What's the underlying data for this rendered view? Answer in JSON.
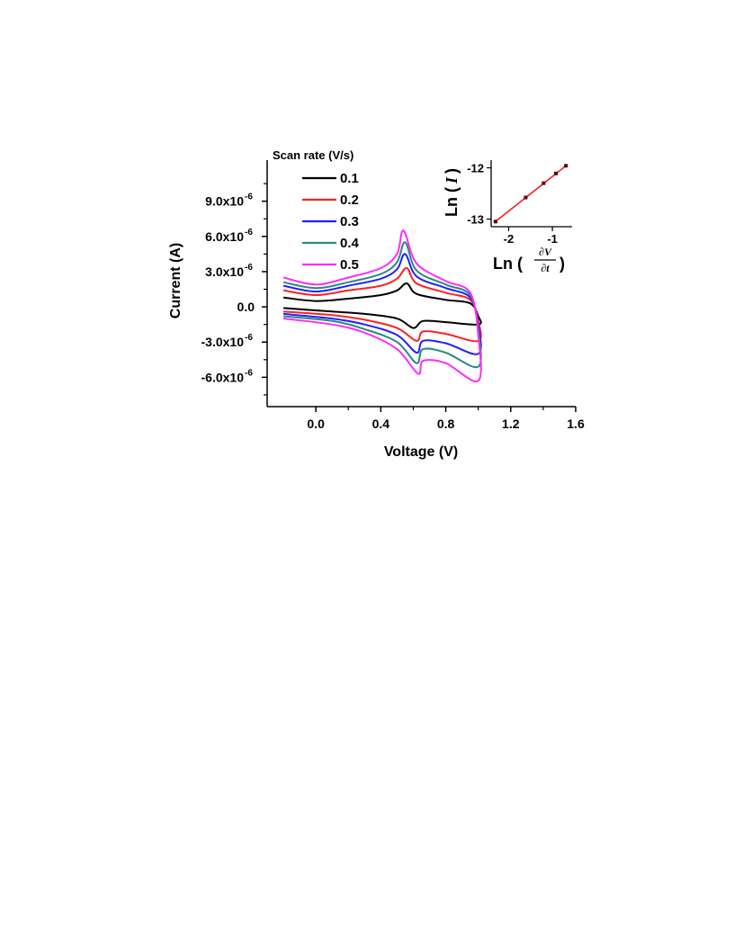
{
  "chart_data": [
    {
      "type": "line",
      "xlabel": "Voltage (V)",
      "ylabel": "Current (A)",
      "xlim": [
        -0.3,
        1.6
      ],
      "ylim": [
        -8.5e-06,
        1.25e-05
      ],
      "xticks": [
        {
          "value": 0.0,
          "label": "0.0"
        },
        {
          "value": 0.4,
          "label": "0.4"
        },
        {
          "value": 0.8,
          "label": "0.8"
        },
        {
          "value": 1.2,
          "label": "1.2"
        },
        {
          "value": 1.6,
          "label": "1.6"
        }
      ],
      "yticks": [
        {
          "value": 9e-06,
          "mantissa": "9.0x10",
          "exp": "-6"
        },
        {
          "value": 6e-06,
          "mantissa": "6.0x10",
          "exp": "-6"
        },
        {
          "value": 3e-06,
          "mantissa": "3.0x10",
          "exp": "-6"
        },
        {
          "value": 0,
          "mantissa": "0.0",
          "exp": ""
        },
        {
          "value": -3e-06,
          "mantissa": "-3.0x10",
          "exp": "-6"
        },
        {
          "value": -6e-06,
          "mantissa": "-6.0x10",
          "exp": "-6"
        }
      ],
      "legend": {
        "title": "Scan rate (V/s)",
        "placement": "top-left"
      },
      "series": [
        {
          "name": "0.1",
          "color": "#000000",
          "forward": [
            [
              -0.2,
              8e-07
            ],
            [
              0.0,
              5e-07
            ],
            [
              0.2,
              7e-07
            ],
            [
              0.4,
              1e-06
            ],
            [
              0.5,
              1.4e-06
            ],
            [
              0.56,
              2e-06
            ],
            [
              0.62,
              1.1e-06
            ],
            [
              0.8,
              6e-07
            ],
            [
              0.95,
              3e-07
            ],
            [
              1.0,
              -8e-07
            ]
          ],
          "reverse": [
            [
              1.0,
              -1.5e-06
            ],
            [
              0.8,
              -1.3e-06
            ],
            [
              0.66,
              -1.2e-06
            ],
            [
              0.6,
              -1.8e-06
            ],
            [
              0.5,
              -1e-06
            ],
            [
              0.3,
              -6e-07
            ],
            [
              0.1,
              -4e-07
            ],
            [
              -0.2,
              -1e-07
            ]
          ]
        },
        {
          "name": "0.2",
          "color": "#ff2020",
          "forward": [
            [
              -0.2,
              1.4e-06
            ],
            [
              0.0,
              1e-06
            ],
            [
              0.2,
              1.4e-06
            ],
            [
              0.4,
              1.8e-06
            ],
            [
              0.5,
              2.4e-06
            ],
            [
              0.56,
              3.3e-06
            ],
            [
              0.62,
              2e-06
            ],
            [
              0.8,
              1.2e-06
            ],
            [
              0.95,
              6e-07
            ],
            [
              1.0,
              -1.2e-06
            ]
          ],
          "reverse": [
            [
              1.0,
              -2.9e-06
            ],
            [
              0.8,
              -2.3e-06
            ],
            [
              0.66,
              -2.1e-06
            ],
            [
              0.62,
              -2.9e-06
            ],
            [
              0.5,
              -1.8e-06
            ],
            [
              0.3,
              -1.1e-06
            ],
            [
              0.1,
              -7e-07
            ],
            [
              -0.2,
              -4e-07
            ]
          ]
        },
        {
          "name": "0.3",
          "color": "#2020ff",
          "forward": [
            [
              -0.2,
              1.8e-06
            ],
            [
              0.0,
              1.3e-06
            ],
            [
              0.2,
              1.8e-06
            ],
            [
              0.4,
              2.4e-06
            ],
            [
              0.5,
              3.2e-06
            ],
            [
              0.55,
              4.5e-06
            ],
            [
              0.62,
              2.6e-06
            ],
            [
              0.8,
              1.6e-06
            ],
            [
              0.95,
              8e-07
            ],
            [
              1.0,
              -1.6e-06
            ]
          ],
          "reverse": [
            [
              1.0,
              -4e-06
            ],
            [
              0.8,
              -3.1e-06
            ],
            [
              0.66,
              -2.9e-06
            ],
            [
              0.62,
              -3.9e-06
            ],
            [
              0.5,
              -2.4e-06
            ],
            [
              0.3,
              -1.5e-06
            ],
            [
              0.1,
              -1e-06
            ],
            [
              -0.2,
              -6e-07
            ]
          ]
        },
        {
          "name": "0.4",
          "color": "#2a8a7e",
          "forward": [
            [
              -0.2,
              2.1e-06
            ],
            [
              0.0,
              1.6e-06
            ],
            [
              0.2,
              2.1e-06
            ],
            [
              0.4,
              2.8e-06
            ],
            [
              0.5,
              3.8e-06
            ],
            [
              0.55,
              5.5e-06
            ],
            [
              0.62,
              3.1e-06
            ],
            [
              0.8,
              1.9e-06
            ],
            [
              0.95,
              1e-06
            ],
            [
              1.0,
              -2e-06
            ]
          ],
          "reverse": [
            [
              1.0,
              -5.1e-06
            ],
            [
              0.8,
              -3.9e-06
            ],
            [
              0.66,
              -3.6e-06
            ],
            [
              0.62,
              -4.8e-06
            ],
            [
              0.5,
              -3e-06
            ],
            [
              0.3,
              -1.9e-06
            ],
            [
              0.1,
              -1.2e-06
            ],
            [
              -0.2,
              -8e-07
            ]
          ]
        },
        {
          "name": "0.5",
          "color": "#ff2aff",
          "forward": [
            [
              -0.2,
              2.5e-06
            ],
            [
              0.0,
              1.9e-06
            ],
            [
              0.2,
              2.5e-06
            ],
            [
              0.4,
              3.3e-06
            ],
            [
              0.5,
              4.5e-06
            ],
            [
              0.54,
              6.5e-06
            ],
            [
              0.62,
              3.7e-06
            ],
            [
              0.8,
              2.2e-06
            ],
            [
              0.95,
              1.2e-06
            ],
            [
              1.0,
              -2.4e-06
            ]
          ],
          "reverse": [
            [
              1.0,
              -6.3e-06
            ],
            [
              0.8,
              -4.8e-06
            ],
            [
              0.66,
              -4.6e-06
            ],
            [
              0.63,
              -5.7e-06
            ],
            [
              0.5,
              -3.6e-06
            ],
            [
              0.3,
              -2.2e-06
            ],
            [
              0.1,
              -1.5e-06
            ],
            [
              -0.2,
              -1e-06
            ]
          ]
        }
      ]
    },
    {
      "type": "scatter",
      "inset": true,
      "xlabel_prefix": "Ln (",
      "xlabel_numerator": "∂V",
      "xlabel_denominator": "∂t",
      "xlabel_suffix": ")",
      "ylabel_prefix": "Ln (",
      "ylabel_var": "I",
      "ylabel_suffix": ")",
      "xlim": [
        -2.4,
        -0.55
      ],
      "ylim": [
        -13.15,
        -11.85
      ],
      "xticks": [
        {
          "value": -2,
          "label": "-2"
        },
        {
          "value": -1,
          "label": "-1"
        }
      ],
      "yticks": [
        {
          "value": -12,
          "label": "-12"
        },
        {
          "value": -13,
          "label": "-13"
        }
      ],
      "points": [
        {
          "x": -2.3,
          "y": -13.05
        },
        {
          "x": -1.61,
          "y": -12.58
        },
        {
          "x": -1.2,
          "y": -12.3
        },
        {
          "x": -0.92,
          "y": -12.11
        },
        {
          "x": -0.69,
          "y": -11.96
        }
      ],
      "fit_line_color": "#ff1a1a",
      "marker_color": "#5a0000"
    }
  ]
}
